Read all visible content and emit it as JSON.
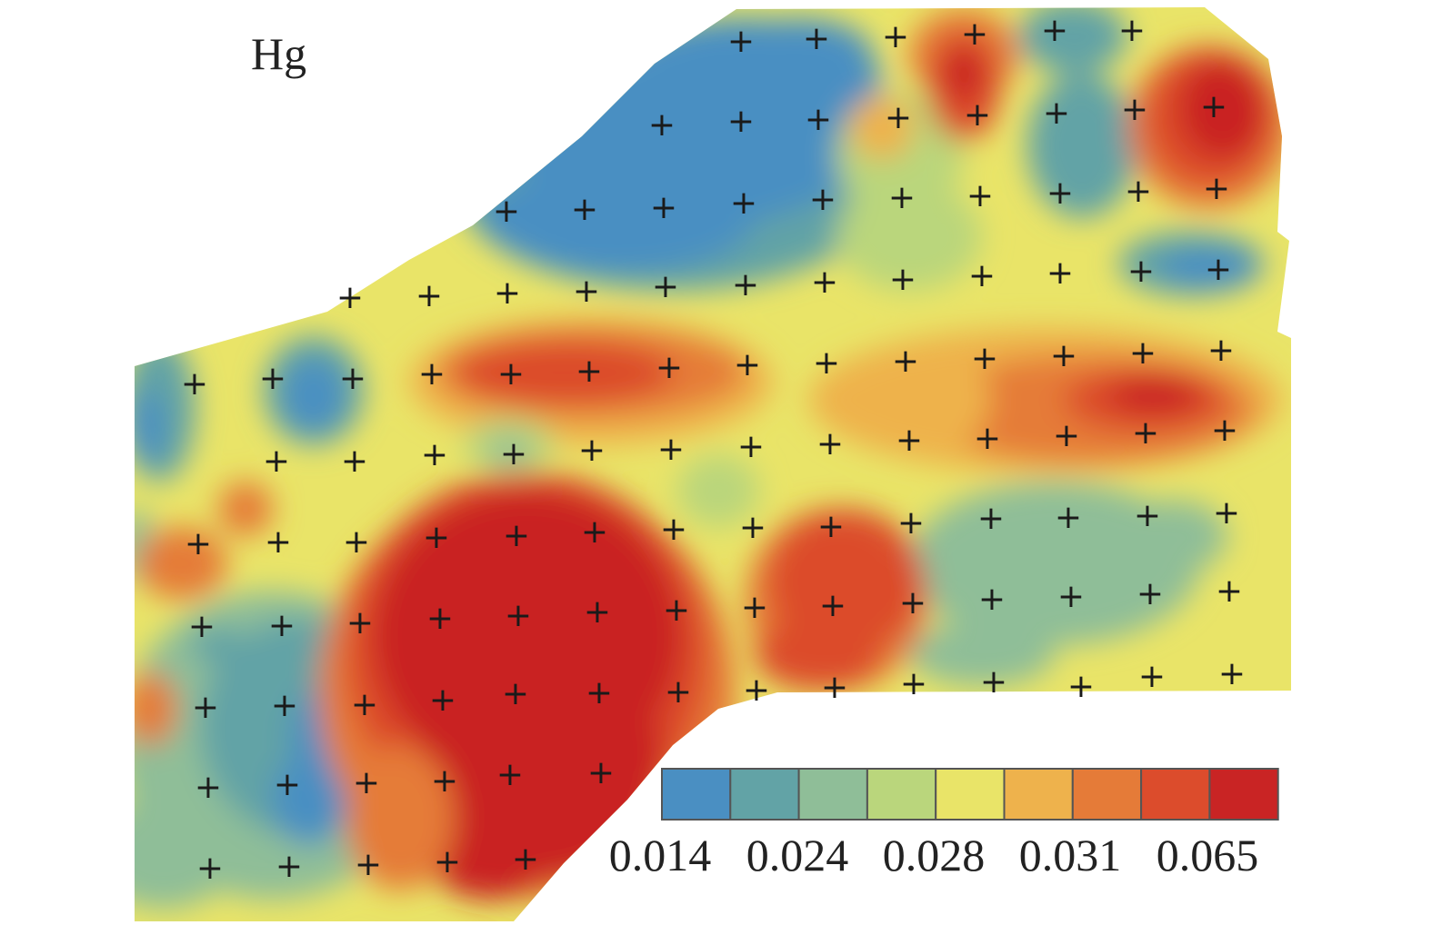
{
  "title": "Hg",
  "legend": {
    "colors": [
      "#4a8fc2",
      "#62a3a6",
      "#8fbe98",
      "#bad67c",
      "#e9e468",
      "#eeb24c",
      "#e57b38",
      "#dc4c2c",
      "#c92424"
    ],
    "labels": [
      "0.014",
      "0.024",
      "0.028",
      "0.031",
      "0.065"
    ]
  },
  "sample_marker": "+"
}
